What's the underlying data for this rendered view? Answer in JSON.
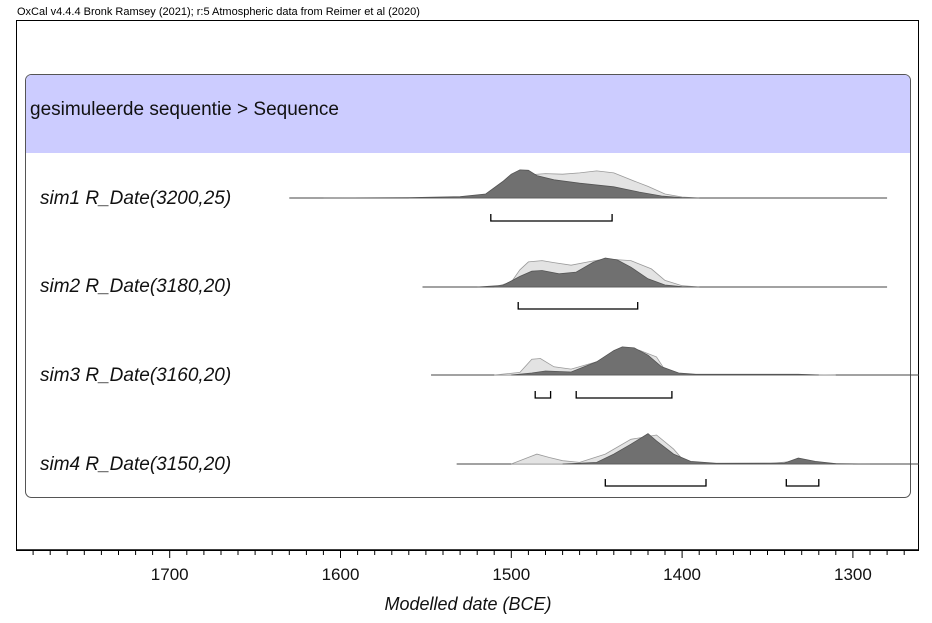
{
  "header": {
    "credit": "OxCal v4.4.4 Bronk Ramsey (2021); r:5 Atmospheric data from Reimer et al (2020)"
  },
  "sequence": {
    "label": "gesimuleerde sequentie > Sequence",
    "fill_color": "#ccccff"
  },
  "colors": {
    "prior": "#e3e3e3",
    "posterior": "#707070",
    "outline": "#555555",
    "range": "#000000"
  },
  "chart_data": {
    "type": "area",
    "xlabel": "Modelled date (BCE)",
    "xlim": [
      1790,
      1255
    ],
    "x_reversed": true,
    "ticks": [
      1700,
      1600,
      1500,
      1400,
      1300
    ],
    "minor_tick_step": 10,
    "series": [
      {
        "name": "sim1 R_Date(3200,25)",
        "baseline_range": [
          1630,
          1280
        ],
        "prior": [
          [
            1560,
            0
          ],
          [
            1530,
            0.01
          ],
          [
            1510,
            0.04
          ],
          [
            1500,
            0.5
          ],
          [
            1490,
            0.7
          ],
          [
            1480,
            0.74
          ],
          [
            1470,
            0.72
          ],
          [
            1460,
            0.76
          ],
          [
            1450,
            0.82
          ],
          [
            1440,
            0.76
          ],
          [
            1430,
            0.55
          ],
          [
            1420,
            0.35
          ],
          [
            1410,
            0.12
          ],
          [
            1400,
            0.03
          ],
          [
            1390,
            0
          ]
        ],
        "posterior": [
          [
            1610,
            0
          ],
          [
            1560,
            0.01
          ],
          [
            1530,
            0.04
          ],
          [
            1515,
            0.12
          ],
          [
            1505,
            0.5
          ],
          [
            1500,
            0.72
          ],
          [
            1495,
            0.85
          ],
          [
            1490,
            0.84
          ],
          [
            1485,
            0.68
          ],
          [
            1475,
            0.55
          ],
          [
            1460,
            0.45
          ],
          [
            1440,
            0.34
          ],
          [
            1425,
            0.18
          ],
          [
            1412,
            0.06
          ],
          [
            1400,
            0.01
          ],
          [
            1390,
            0
          ]
        ],
        "ranges": [
          [
            1512,
            1441
          ]
        ]
      },
      {
        "name": "sim2 R_Date(3180,20)",
        "baseline_range": [
          1552,
          1280
        ],
        "prior": [
          [
            1510,
            0
          ],
          [
            1500,
            0.15
          ],
          [
            1495,
            0.52
          ],
          [
            1490,
            0.76
          ],
          [
            1482,
            0.8
          ],
          [
            1475,
            0.74
          ],
          [
            1465,
            0.66
          ],
          [
            1455,
            0.76
          ],
          [
            1445,
            0.85
          ],
          [
            1430,
            0.8
          ],
          [
            1418,
            0.55
          ],
          [
            1410,
            0.2
          ],
          [
            1400,
            0.04
          ],
          [
            1390,
            0
          ]
        ],
        "posterior": [
          [
            1520,
            0
          ],
          [
            1505,
            0.05
          ],
          [
            1495,
            0.32
          ],
          [
            1488,
            0.48
          ],
          [
            1482,
            0.5
          ],
          [
            1472,
            0.4
          ],
          [
            1462,
            0.45
          ],
          [
            1452,
            0.75
          ],
          [
            1445,
            0.88
          ],
          [
            1438,
            0.82
          ],
          [
            1430,
            0.6
          ],
          [
            1420,
            0.25
          ],
          [
            1410,
            0.06
          ],
          [
            1400,
            0.01
          ],
          [
            1390,
            0
          ]
        ],
        "ranges": [
          [
            1496,
            1426
          ]
        ]
      },
      {
        "name": "sim3 R_Date(3160,20)",
        "baseline_range": [
          1547,
          1245
        ],
        "prior": [
          [
            1510,
            0
          ],
          [
            1495,
            0.08
          ],
          [
            1488,
            0.48
          ],
          [
            1483,
            0.5
          ],
          [
            1475,
            0.25
          ],
          [
            1465,
            0.18
          ],
          [
            1450,
            0.4
          ],
          [
            1440,
            0.7
          ],
          [
            1432,
            0.8
          ],
          [
            1425,
            0.75
          ],
          [
            1415,
            0.55
          ],
          [
            1410,
            0.15
          ],
          [
            1405,
            0.04
          ],
          [
            1395,
            0.01
          ],
          [
            1330,
            0.01
          ],
          [
            1310,
            0
          ]
        ],
        "posterior": [
          [
            1500,
            0
          ],
          [
            1488,
            0.06
          ],
          [
            1480,
            0.12
          ],
          [
            1465,
            0.09
          ],
          [
            1450,
            0.4
          ],
          [
            1440,
            0.74
          ],
          [
            1435,
            0.85
          ],
          [
            1428,
            0.82
          ],
          [
            1420,
            0.6
          ],
          [
            1412,
            0.25
          ],
          [
            1402,
            0.06
          ],
          [
            1392,
            0.02
          ],
          [
            1332,
            0.02
          ],
          [
            1320,
            0
          ]
        ],
        "ranges": [
          [
            1486,
            1477
          ],
          [
            1462,
            1406
          ]
        ]
      },
      {
        "name": "sim4 R_Date(3150,20)",
        "baseline_range": [
          1532,
          1245
        ],
        "prior": [
          [
            1500,
            0
          ],
          [
            1490,
            0.2
          ],
          [
            1485,
            0.3
          ],
          [
            1478,
            0.2
          ],
          [
            1470,
            0.1
          ],
          [
            1460,
            0.05
          ],
          [
            1445,
            0.3
          ],
          [
            1430,
            0.75
          ],
          [
            1415,
            0.88
          ],
          [
            1405,
            0.45
          ],
          [
            1398,
            0.04
          ],
          [
            1380,
            0.01
          ],
          [
            1350,
            0.01
          ],
          [
            1335,
            0.08
          ],
          [
            1320,
            0.02
          ],
          [
            1300,
            0
          ]
        ],
        "posterior": [
          [
            1470,
            0
          ],
          [
            1450,
            0.05
          ],
          [
            1440,
            0.3
          ],
          [
            1430,
            0.6
          ],
          [
            1420,
            0.92
          ],
          [
            1415,
            0.7
          ],
          [
            1405,
            0.3
          ],
          [
            1395,
            0.08
          ],
          [
            1380,
            0.02
          ],
          [
            1340,
            0.03
          ],
          [
            1332,
            0.18
          ],
          [
            1322,
            0.08
          ],
          [
            1310,
            0.01
          ],
          [
            1290,
            0
          ]
        ],
        "ranges": [
          [
            1445,
            1386
          ],
          [
            1339,
            1320
          ]
        ]
      }
    ]
  }
}
